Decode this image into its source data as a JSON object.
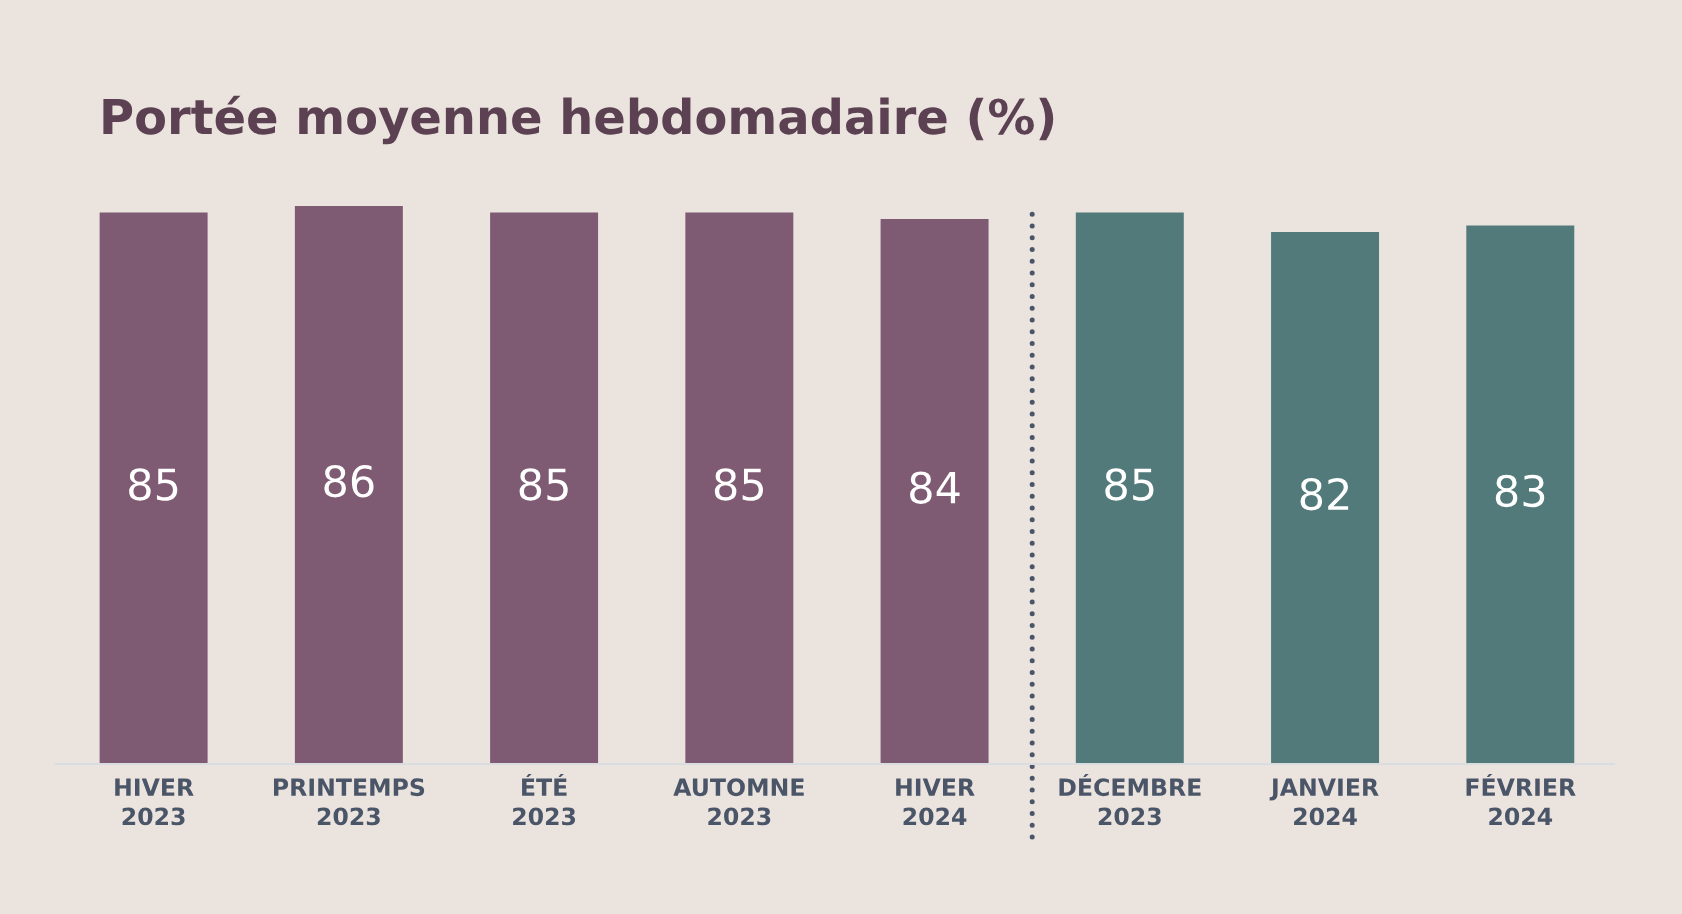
{
  "chart_data": {
    "type": "bar",
    "title": "Portée moyenne hebdomadaire (%)",
    "categories": [
      "HIVER\n2023",
      "PRINTEMPS\n2023",
      "ÉTÉ\n2023",
      "AUTOMNE\n2023",
      "HIVER\n2024",
      "DÉCEMBRE\n2023",
      "JANVIER\n2024",
      "FÉVRIER\n2024"
    ],
    "values": [
      85,
      86,
      85,
      85,
      84,
      85,
      82,
      83
    ],
    "colors": [
      "#7f5b73",
      "#7f5b73",
      "#7f5b73",
      "#7f5b73",
      "#7f5b73",
      "#527a7a",
      "#527a7a",
      "#527a7a"
    ],
    "ylim": [
      0,
      86
    ],
    "data_labels": true,
    "tick_labels": "x"
  }
}
